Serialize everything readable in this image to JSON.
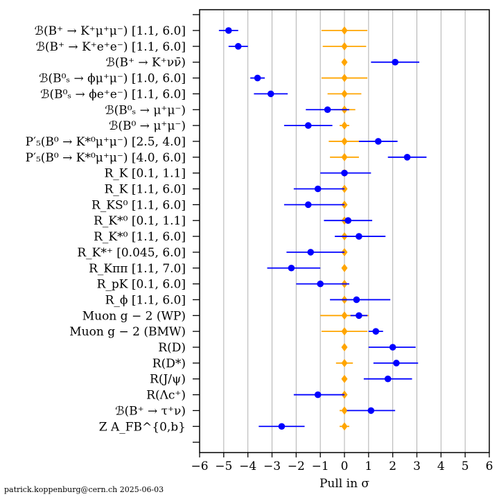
{
  "chart_data": {
    "type": "scatter",
    "xlabel": "Pull in σ",
    "xlim": [
      -6,
      6
    ],
    "xticks": [
      "−6",
      "−5",
      "−4",
      "−3",
      "−2",
      "−1",
      "0",
      "1",
      "2",
      "3",
      "4",
      "5",
      "6"
    ],
    "grid": "vertical",
    "colors": {
      "measurement": "#0000ff",
      "reference": "#ffa500",
      "grid": "#b0b0b0"
    },
    "credit": "patrick.koppenburg@cern.ch  2025-06-03",
    "rows": [
      {
        "label": "ℬ(B⁺ → K⁺μ⁺μ⁻) [1.1, 6.0]",
        "pull": -4.8,
        "err_lo": 0.4,
        "err_hi": 0.4,
        "ref_err": 0.95
      },
      {
        "label": "ℬ(B⁺ → K⁺e⁺e⁻) [1.1, 6.0]",
        "pull": -4.4,
        "err_lo": 0.4,
        "err_hi": 0.4,
        "ref_err": 0.9
      },
      {
        "label": "ℬ(B⁺ → K⁺νν̄)",
        "pull": 2.1,
        "err_lo": 1.0,
        "err_hi": 1.0,
        "ref_err": 0.0
      },
      {
        "label": "ℬ(B⁰ₛ → ϕμ⁺μ⁻) [1.0, 6.0]",
        "pull": -3.6,
        "err_lo": 0.3,
        "err_hi": 0.3,
        "ref_err": 0.95
      },
      {
        "label": "ℬ(B⁰ₛ → ϕe⁺e⁻) [1.1, 6.0]",
        "pull": -3.05,
        "err_lo": 0.7,
        "err_hi": 0.7,
        "ref_err": 0.7
      },
      {
        "label": "ℬ(B⁰ₛ → μ⁺μ⁻)",
        "pull": -0.7,
        "err_lo": 0.9,
        "err_hi": 0.9,
        "ref_err": 0.45
      },
      {
        "label": "ℬ(B⁰ → μ⁺μ⁻)",
        "pull": -1.5,
        "err_lo": 1.0,
        "err_hi": 1.0,
        "ref_err": 0.2
      },
      {
        "label": "P′₅(B⁰ → K*⁰μ⁺μ⁻) [2.5, 4.0]",
        "pull": 1.4,
        "err_lo": 0.8,
        "err_hi": 0.8,
        "ref_err": 0.65
      },
      {
        "label": "P′₅(B⁰ → K*⁰μ⁺μ⁻) [4.0, 6.0]",
        "pull": 2.6,
        "err_lo": 0.8,
        "err_hi": 0.8,
        "ref_err": 0.6
      },
      {
        "label": "R_K [0.1, 1.1]",
        "pull": 0.0,
        "err_lo": 1.0,
        "err_hi": 1.1,
        "ref_err": 0.0
      },
      {
        "label": "R_K [1.1, 6.0]",
        "pull": -1.1,
        "err_lo": 1.0,
        "err_hi": 1.1,
        "ref_err": 0.0
      },
      {
        "label": "R_KS⁰ [1.1, 6.0]",
        "pull": -1.5,
        "err_lo": 1.0,
        "err_hi": 1.5,
        "ref_err": 0.0
      },
      {
        "label": "R_K*⁰ [0.1, 1.1]",
        "pull": 0.15,
        "err_lo": 1.0,
        "err_hi": 1.0,
        "ref_err": 0.15
      },
      {
        "label": "R_K*⁰ [1.1, 6.0]",
        "pull": 0.6,
        "err_lo": 1.0,
        "err_hi": 1.1,
        "ref_err": 0.15
      },
      {
        "label": "R_K*⁺ [0.045, 6.0]",
        "pull": -1.4,
        "err_lo": 1.0,
        "err_hi": 1.4,
        "ref_err": 0.0
      },
      {
        "label": "R_Kππ [1.1, 7.0]",
        "pull": -2.2,
        "err_lo": 1.0,
        "err_hi": 1.2,
        "ref_err": 0.0
      },
      {
        "label": "R_pK [0.1, 6.0]",
        "pull": -1.0,
        "err_lo": 1.0,
        "err_hi": 1.2,
        "ref_err": 0.0
      },
      {
        "label": "R_ϕ [1.1, 6.0]",
        "pull": 0.5,
        "err_lo": 1.1,
        "err_hi": 1.4,
        "ref_err": 0.0
      },
      {
        "label": "Muon g − 2 (WP)",
        "pull": 0.6,
        "err_lo": 0.35,
        "err_hi": 0.35,
        "ref_err": 1.0
      },
      {
        "label": "Muon g − 2 (BMW)",
        "pull": 1.3,
        "err_lo": 0.3,
        "err_hi": 0.3,
        "ref_err": 0.95
      },
      {
        "label": "R(D)",
        "pull": 2.0,
        "err_lo": 1.0,
        "err_hi": 0.95,
        "ref_err": 0.0
      },
      {
        "label": "R(D*)",
        "pull": 2.15,
        "err_lo": 0.95,
        "err_hi": 0.9,
        "ref_err": 0.35
      },
      {
        "label": "R(J/ψ)",
        "pull": 1.8,
        "err_lo": 1.0,
        "err_hi": 1.0,
        "ref_err": 0.0
      },
      {
        "label": "R(Λc⁺)",
        "pull": -1.1,
        "err_lo": 1.0,
        "err_hi": 1.1,
        "ref_err": 0.0
      },
      {
        "label": "ℬ(B⁺ → τ⁺ν)",
        "pull": 1.1,
        "err_lo": 1.0,
        "err_hi": 1.0,
        "ref_err": 0.2
      },
      {
        "label": "Z A_FB^{0,b}",
        "pull": -2.6,
        "err_lo": 0.95,
        "err_hi": 0.95,
        "ref_err": 0.2
      }
    ]
  }
}
